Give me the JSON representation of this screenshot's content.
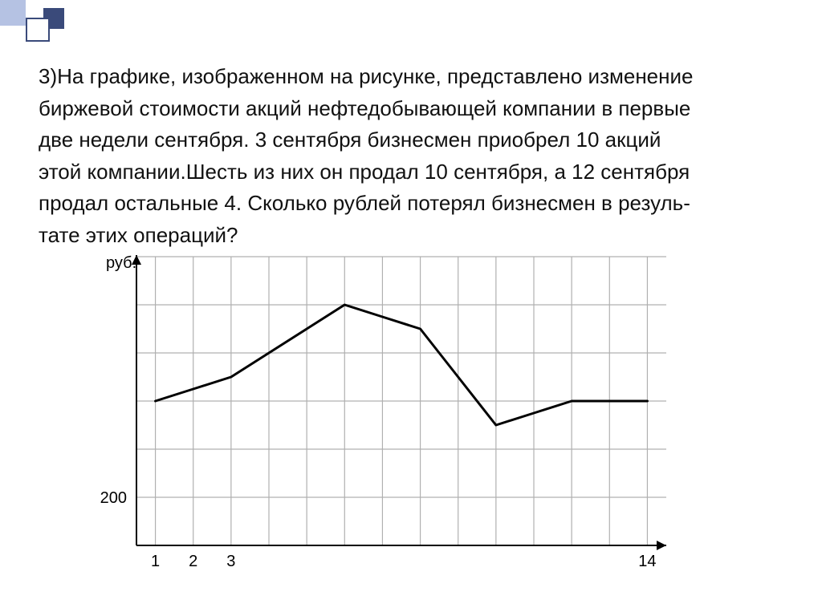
{
  "problem": {
    "lines": [
      "3)На графике, изображенном на рисунке, представлено изменение",
      "биржевой стоимости акций нефтедобывающей компании в первые",
      "две недели сентября. 3 сентября бизнесмен приобрел 10 акций",
      "этой компании.Шесть из них он продал 10 сентября, а 12 сентября",
      "продал остальные 4. Сколько рублей потерял бизнесмен в резуль-",
      "тате этих операций?"
    ],
    "fontsize": 26,
    "color": "#111111"
  },
  "chart": {
    "type": "line",
    "y_axis_label": "руб.",
    "y_tick_labels": [
      "200"
    ],
    "y_tick_values": [
      200
    ],
    "x_tick_labels": [
      "1",
      "2",
      "3",
      "14"
    ],
    "x_tick_values": [
      1,
      2,
      3,
      14
    ],
    "xlim": [
      0.5,
      14.5
    ],
    "ylim": [
      0,
      1200
    ],
    "grid_x_start": 1,
    "grid_x_end": 14,
    "grid_x_step": 1,
    "grid_y_start": 0,
    "grid_y_end": 1200,
    "grid_y_step": 200,
    "series": {
      "x": [
        1,
        2,
        3,
        4,
        5,
        6,
        7,
        8,
        9,
        10,
        11,
        12,
        13,
        14
      ],
      "y": [
        600,
        650,
        700,
        800,
        900,
        1000,
        950,
        900,
        700,
        500,
        550,
        600,
        600,
        600
      ]
    },
    "colors": {
      "background": "#ffffff",
      "grid": "#b0b0b0",
      "axis": "#000000",
      "line": "#000000",
      "text": "#000000"
    },
    "line_width": 3,
    "axis_width": 2,
    "grid_width": 1.2,
    "label_fontsize": 20,
    "tick_fontsize": 20
  }
}
